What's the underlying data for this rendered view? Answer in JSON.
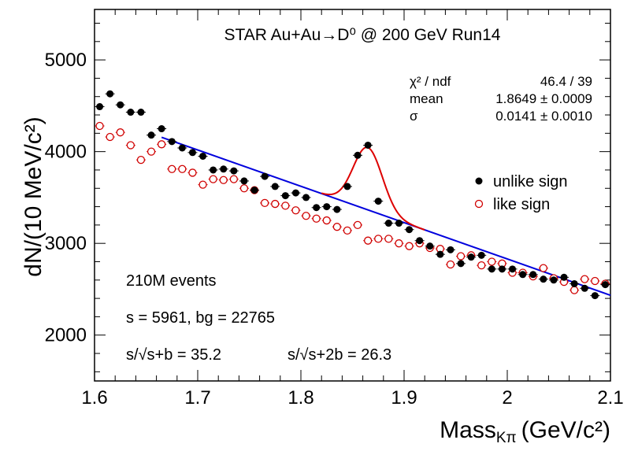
{
  "chart_data": {
    "type": "scatter",
    "title": "STAR Au+Au→D⁰ @ 200 GeV Run14",
    "xlabel_main": "Mass",
    "xlabel_sub": "Kπ",
    "xlabel_unit": "(GeV/c²)",
    "ylabel": "dN/(10 MeV/c²)",
    "xlim": [
      1.6,
      2.1
    ],
    "ylim": [
      1500,
      5550
    ],
    "x_ticks": [
      "1.6",
      "1.7",
      "1.8",
      "1.9",
      "2",
      "2.1"
    ],
    "y_ticks": [
      "2000",
      "3000",
      "4000",
      "5000"
    ],
    "legend": [
      "unlike sign",
      "like sign"
    ],
    "stats": {
      "chi2_label": "χ² / ndf",
      "chi2_value": "46.4 / 39",
      "mean_label": "mean",
      "mean_value": "1.8649 ± 0.0009",
      "sigma_label": "σ",
      "sigma_value": "0.0141 ± 0.0010"
    },
    "annotations": {
      "events": "210M events",
      "counts": "s = 5961,  bg = 22765",
      "sig1": "s/√s+b = 35.2",
      "sig2": "s/√s+2b = 26.3"
    },
    "series": [
      {
        "name": "unlike sign",
        "color": "#000000",
        "marker": "filled-circle",
        "x": [
          1.605,
          1.615,
          1.625,
          1.635,
          1.645,
          1.655,
          1.665,
          1.675,
          1.685,
          1.695,
          1.705,
          1.715,
          1.725,
          1.735,
          1.745,
          1.755,
          1.765,
          1.775,
          1.785,
          1.795,
          1.805,
          1.815,
          1.825,
          1.835,
          1.845,
          1.855,
          1.865,
          1.875,
          1.885,
          1.895,
          1.905,
          1.915,
          1.925,
          1.935,
          1.945,
          1.955,
          1.965,
          1.975,
          1.985,
          1.995,
          2.005,
          2.015,
          2.025,
          2.035,
          2.045,
          2.055,
          2.065,
          2.075,
          2.085,
          2.095
        ],
        "y": [
          4490,
          4630,
          4510,
          4430,
          4430,
          4180,
          4250,
          4110,
          4040,
          3990,
          3950,
          3800,
          3810,
          3790,
          3680,
          3580,
          3730,
          3620,
          3520,
          3550,
          3500,
          3390,
          3400,
          3370,
          3620,
          3960,
          4070,
          3460,
          3220,
          3220,
          3150,
          3030,
          2970,
          2880,
          2930,
          2780,
          2850,
          2870,
          2720,
          2720,
          2720,
          2660,
          2660,
          2610,
          2600,
          2630,
          2560,
          2510,
          2430,
          2550
        ],
        "err": [
          35,
          35,
          35,
          35,
          35,
          35,
          35,
          35,
          35,
          35,
          35,
          35,
          35,
          35,
          35,
          35,
          35,
          35,
          35,
          35,
          35,
          35,
          35,
          35,
          35,
          35,
          35,
          35,
          35,
          35,
          35,
          35,
          35,
          35,
          35,
          35,
          35,
          35,
          35,
          35,
          35,
          35,
          35,
          35,
          35,
          35,
          35,
          35,
          35,
          35
        ]
      },
      {
        "name": "like sign",
        "color": "#d00000",
        "marker": "open-circle",
        "x": [
          1.605,
          1.615,
          1.625,
          1.635,
          1.645,
          1.655,
          1.665,
          1.675,
          1.685,
          1.695,
          1.705,
          1.715,
          1.725,
          1.735,
          1.745,
          1.755,
          1.765,
          1.775,
          1.785,
          1.795,
          1.805,
          1.815,
          1.825,
          1.835,
          1.845,
          1.855,
          1.865,
          1.875,
          1.885,
          1.895,
          1.905,
          1.915,
          1.925,
          1.935,
          1.945,
          1.955,
          1.965,
          1.975,
          1.985,
          1.995,
          2.005,
          2.015,
          2.025,
          2.035,
          2.045,
          2.055,
          2.065,
          2.075,
          2.085,
          2.095
        ],
        "y": [
          4280,
          4160,
          4210,
          4070,
          3910,
          4000,
          4080,
          3810,
          3810,
          3770,
          3640,
          3700,
          3690,
          3700,
          3600,
          3580,
          3440,
          3430,
          3410,
          3360,
          3300,
          3270,
          3250,
          3180,
          3140,
          3200,
          3030,
          3050,
          3050,
          3000,
          2970,
          3000,
          2950,
          2940,
          2770,
          2860,
          2870,
          2760,
          2800,
          2780,
          2680,
          2680,
          2640,
          2730,
          2620,
          2580,
          2490,
          2610,
          2590,
          2560
        ],
        "err": [
          30,
          30,
          30,
          30,
          30,
          30,
          30,
          30,
          30,
          30,
          30,
          30,
          30,
          30,
          30,
          30,
          30,
          30,
          30,
          30,
          30,
          30,
          30,
          30,
          30,
          30,
          30,
          30,
          30,
          30,
          30,
          30,
          30,
          30,
          30,
          30,
          30,
          30,
          30,
          30,
          30,
          30,
          30,
          30,
          30,
          30,
          30,
          30,
          30,
          30
        ]
      }
    ],
    "fits": {
      "background": {
        "color": "#0000dd",
        "xrange": [
          1.665,
          2.1
        ],
        "slope": -3960,
        "intercept": 10750
      },
      "signal_plus_background": {
        "color": "#dd0000",
        "xrange": [
          1.82,
          1.92
        ],
        "mean": 1.8649,
        "sigma": 0.0141,
        "amplitude": 680
      }
    }
  }
}
